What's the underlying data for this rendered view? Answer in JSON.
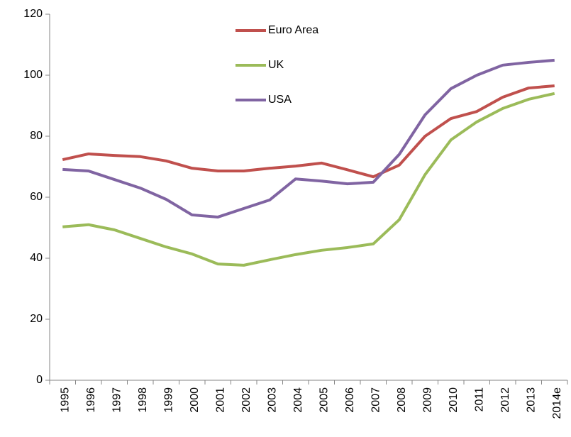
{
  "chart_data": {
    "type": "line",
    "categories": [
      "1995",
      "1996",
      "1997",
      "1998",
      "1999",
      "2000",
      "2001",
      "2002",
      "2003",
      "2004",
      "2005",
      "2006",
      "2007",
      "2008",
      "2009",
      "2010",
      "2011",
      "2012",
      "2013",
      "2014e"
    ],
    "series": [
      {
        "name": "Euro Area",
        "color": "#c0504d",
        "values": [
          72.3,
          74.2,
          73.7,
          73.3,
          71.9,
          69.5,
          68.6,
          68.6,
          69.5,
          70.2,
          71.2,
          69,
          66.7,
          70.5,
          80,
          85.8,
          88.1,
          92.8,
          95.8,
          96.5
        ]
      },
      {
        "name": "UK",
        "color": "#9bbb59",
        "values": [
          50.3,
          51,
          49.3,
          46.5,
          43.7,
          41.4,
          38.1,
          37.7,
          39.5,
          41.2,
          42.6,
          43.5,
          44.7,
          52.6,
          67.4,
          78.8,
          84.7,
          89.1,
          92.1,
          94
        ]
      },
      {
        "name": "USA",
        "color": "#8064a2",
        "values": [
          69.1,
          68.6,
          65.8,
          63,
          59.3,
          54.2,
          53.5,
          56.3,
          59.1,
          66,
          65.3,
          64.4,
          64.9,
          74,
          87,
          95.6,
          100,
          103.3,
          104.2,
          104.9
        ]
      }
    ],
    "ylim": [
      0,
      120
    ],
    "yticks": [
      0,
      20,
      40,
      60,
      80,
      100,
      120
    ],
    "grid": false,
    "legend": "top-center"
  }
}
